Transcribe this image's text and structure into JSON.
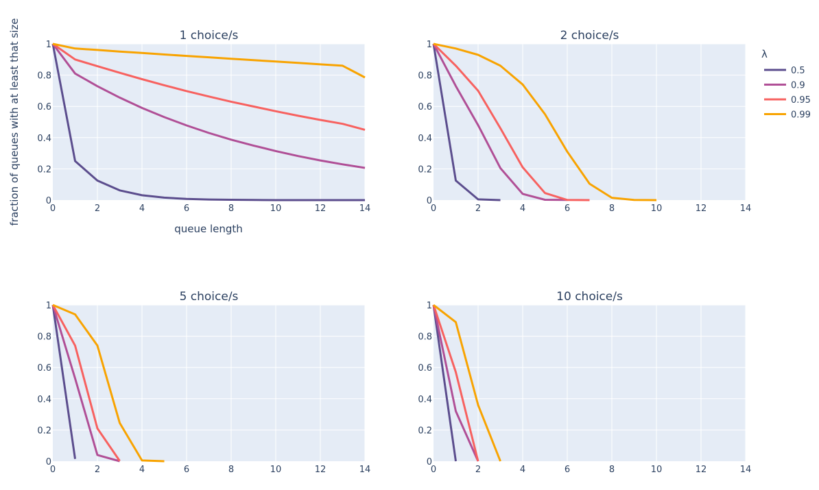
{
  "chart_data": {
    "type": "line",
    "x": [
      0,
      1,
      2,
      3,
      4,
      5,
      6,
      7,
      8,
      9,
      10,
      11,
      12,
      13,
      14
    ],
    "xlim": [
      0,
      14
    ],
    "ylim": [
      0,
      1
    ],
    "xticks": [
      0,
      2,
      4,
      6,
      8,
      10,
      12,
      14
    ],
    "xtick_labels": [
      "0",
      "2",
      "4",
      "6",
      "8",
      "10",
      "12",
      "14"
    ],
    "yticks": [
      0,
      0.2,
      0.4,
      0.6,
      0.8,
      1
    ],
    "ytick_labels": [
      "0",
      "0.2",
      "0.4",
      "0.6",
      "0.8",
      "1"
    ],
    "xlabel": "queue length",
    "ylabel": "fraction of queues with at least that size",
    "grid": true,
    "legend": {
      "title": "λ",
      "placement": "top-right",
      "entries": [
        {
          "name": "0.5",
          "color": "#5b4d8d"
        },
        {
          "name": "0.9",
          "color": "#b04f96"
        },
        {
          "name": "0.95",
          "color": "#f7615f"
        },
        {
          "name": "0.99",
          "color": "#f8a300"
        }
      ]
    },
    "panels": [
      {
        "title": "1 choice/s",
        "series": [
          {
            "name": "0.5",
            "values": [
              1,
              0.25,
              0.125,
              0.0625,
              0.031,
              0.016,
              0.008,
              0.004,
              0.002,
              0.001,
              0,
              0,
              0,
              0,
              0
            ]
          },
          {
            "name": "0.9",
            "values": [
              1,
              0.81,
              0.729,
              0.656,
              0.59,
              0.531,
              0.478,
              0.43,
              0.387,
              0.349,
              0.314,
              0.282,
              0.254,
              0.229,
              0.206
            ]
          },
          {
            "name": "0.95",
            "values": [
              1,
              0.9,
              0.857,
              0.815,
              0.774,
              0.735,
              0.698,
              0.663,
              0.63,
              0.599,
              0.569,
              0.54,
              0.513,
              0.488,
              0.45
            ]
          },
          {
            "name": "0.99",
            "values": [
              1,
              0.97,
              0.961,
              0.951,
              0.942,
              0.932,
              0.923,
              0.914,
              0.905,
              0.896,
              0.887,
              0.878,
              0.869,
              0.86,
              0.785
            ]
          }
        ]
      },
      {
        "title": "2 choice/s",
        "series": [
          {
            "name": "0.5",
            "values": [
              1,
              0.125,
              0.005,
              0
            ]
          },
          {
            "name": "0.9",
            "values": [
              1,
              0.73,
              0.48,
              0.205,
              0.04,
              0.002,
              0.001
            ]
          },
          {
            "name": "0.95",
            "values": [
              1,
              0.86,
              0.7,
              0.46,
              0.21,
              0.045,
              0.001,
              0
            ]
          },
          {
            "name": "0.99",
            "values": [
              1,
              0.97,
              0.93,
              0.86,
              0.74,
              0.55,
              0.31,
              0.105,
              0.015,
              0.001,
              0
            ]
          }
        ]
      },
      {
        "title": "5 choice/s",
        "series": [
          {
            "name": "0.5",
            "values": [
              1,
              0.015
            ]
          },
          {
            "name": "0.9",
            "values": [
              1,
              0.53,
              0.04,
              0
            ]
          },
          {
            "name": "0.95",
            "values": [
              1,
              0.74,
              0.21,
              0.002
            ]
          },
          {
            "name": "0.99",
            "values": [
              1,
              0.94,
              0.74,
              0.245,
              0.005,
              0
            ]
          }
        ]
      },
      {
        "title": "10 choice/s",
        "series": [
          {
            "name": "0.5",
            "values": [
              1,
              0
            ]
          },
          {
            "name": "0.9",
            "values": [
              1,
              0.32,
              0
            ]
          },
          {
            "name": "0.95",
            "values": [
              1,
              0.57,
              0
            ]
          },
          {
            "name": "0.99",
            "values": [
              1,
              0.89,
              0.36,
              0
            ]
          }
        ]
      }
    ]
  }
}
